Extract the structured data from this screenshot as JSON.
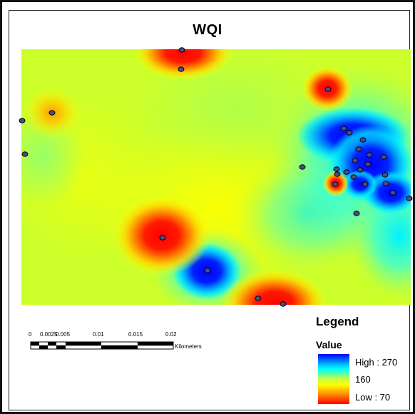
{
  "map": {
    "title": "WQI",
    "scale": {
      "ticks": [
        "0",
        "0.0025",
        "0.005",
        "0.01",
        "0.015",
        "0.02"
      ],
      "unit": "Kilometers"
    },
    "legend": {
      "title": "Legend",
      "field": "Value",
      "high_label": "High : 270",
      "mid_label": "160",
      "low_label": "Low : 70",
      "high_color": "#0000ff",
      "low_color": "#ff0000"
    },
    "colors": {
      "base": "#ccff2a",
      "point_fill": "#4a4a8c"
    }
  }
}
